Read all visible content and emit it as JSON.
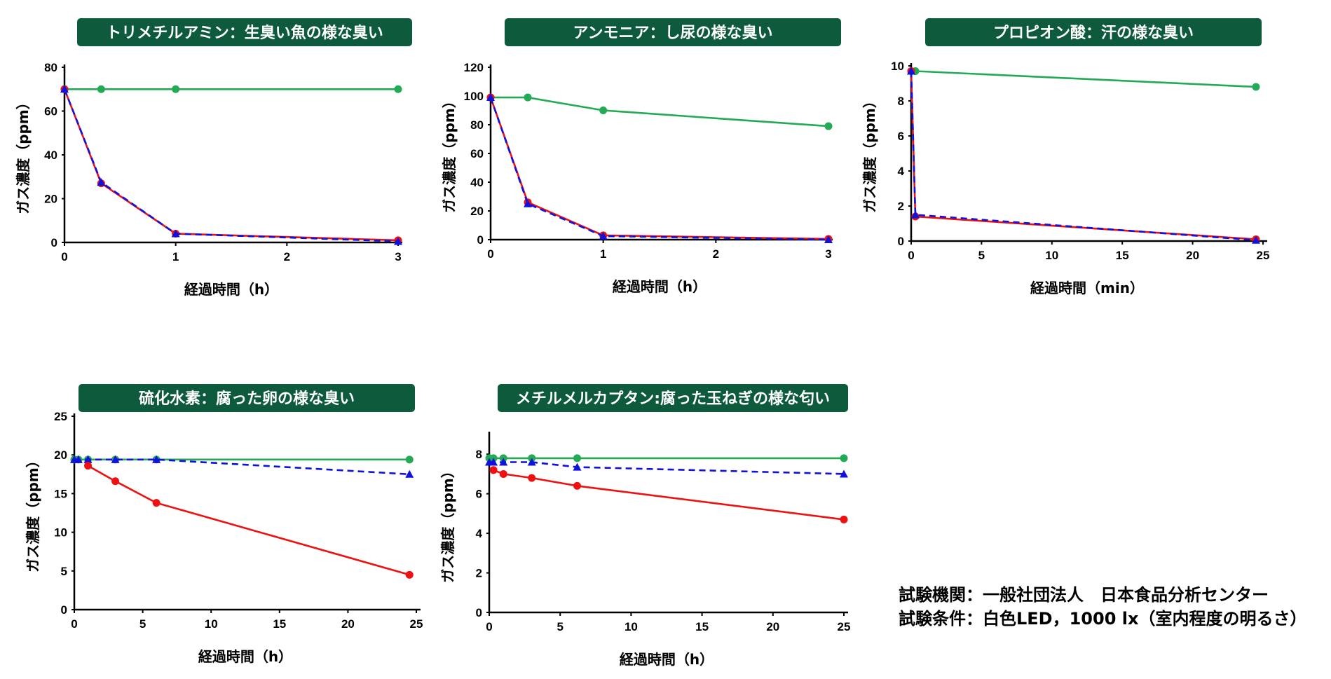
{
  "colors": {
    "title_bg": "#0d5a3c",
    "green": "#22aa55",
    "red": "#ee1111",
    "blue": "#1111dd"
  },
  "notes": {
    "line1": "試験機関：一般社団法人　日本食品分析センター",
    "line2": "試験条件：白色LED，1000 lx（室内程度の明るさ）"
  },
  "chart_data": [
    {
      "type": "line",
      "title": "トリメチルアミン：生臭い魚の様な臭い",
      "xlabel": "経過時間（h）",
      "ylabel": "ガス濃度（ppm）",
      "xlim": [
        0,
        3
      ],
      "ylim": [
        0,
        80
      ],
      "xticks": [
        0,
        1,
        2,
        3
      ],
      "yticks": [
        0,
        20,
        40,
        60,
        80
      ],
      "grid": false,
      "series": [
        {
          "color": "green",
          "marker": "circle",
          "dash": false,
          "points": [
            [
              0,
              70
            ],
            [
              0.33,
              70
            ],
            [
              1,
              70
            ],
            [
              3,
              70
            ]
          ]
        },
        {
          "color": "red",
          "marker": "circle",
          "dash": false,
          "points": [
            [
              0,
              70
            ],
            [
              0.33,
              27
            ],
            [
              1,
              4
            ],
            [
              3,
              1
            ]
          ]
        },
        {
          "color": "blue",
          "marker": "triangle",
          "dash": true,
          "points": [
            [
              0,
              70
            ],
            [
              0.33,
              27.5
            ],
            [
              1,
              4
            ],
            [
              3,
              0.5
            ]
          ]
        }
      ]
    },
    {
      "type": "line",
      "title": "アンモニア：し尿の様な臭い",
      "xlabel": "経過時間（h）",
      "ylabel": "ガス濃度（ppm）",
      "xlim": [
        0,
        3
      ],
      "ylim": [
        0,
        120
      ],
      "xticks": [
        0,
        1,
        2,
        3
      ],
      "yticks": [
        0,
        20,
        40,
        60,
        80,
        100,
        120
      ],
      "grid": false,
      "series": [
        {
          "color": "green",
          "marker": "circle",
          "dash": false,
          "points": [
            [
              0,
              99
            ],
            [
              0.33,
              99
            ],
            [
              1,
              90
            ],
            [
              3,
              79
            ]
          ]
        },
        {
          "color": "red",
          "marker": "circle",
          "dash": false,
          "points": [
            [
              0,
              99
            ],
            [
              0.33,
              26
            ],
            [
              1,
              3
            ],
            [
              3,
              0.5
            ]
          ]
        },
        {
          "color": "blue",
          "marker": "triangle",
          "dash": true,
          "points": [
            [
              0,
              99
            ],
            [
              0.33,
              25
            ],
            [
              1,
              2.5
            ],
            [
              3,
              0
            ]
          ]
        }
      ]
    },
    {
      "type": "line",
      "title": "プロピオン酸：汗の様な臭い",
      "xlabel": "経過時間（min）",
      "ylabel": "ガス濃度（ppm）",
      "xlim": [
        0,
        25
      ],
      "ylim": [
        0,
        10
      ],
      "xticks": [
        0,
        5,
        10,
        15,
        20,
        25
      ],
      "yticks": [
        0,
        2,
        4,
        6,
        8,
        10
      ],
      "grid": false,
      "series": [
        {
          "color": "green",
          "marker": "circle",
          "dash": false,
          "points": [
            [
              0,
              9.7
            ],
            [
              0.3,
              9.7
            ],
            [
              24.5,
              8.8
            ]
          ]
        },
        {
          "color": "red",
          "marker": "circle",
          "dash": false,
          "points": [
            [
              0,
              9.7
            ],
            [
              0.3,
              1.4
            ],
            [
              24.5,
              0.1
            ]
          ]
        },
        {
          "color": "blue",
          "marker": "triangle",
          "dash": true,
          "points": [
            [
              0,
              9.7
            ],
            [
              0.3,
              1.5
            ],
            [
              24.5,
              0.05
            ]
          ]
        }
      ]
    },
    {
      "type": "line",
      "title": "硫化水素：腐った卵の様な臭い",
      "xlabel": "経過時間（h）",
      "ylabel": "ガス濃度（ppm）",
      "xlim": [
        0,
        25
      ],
      "ylim": [
        0,
        25
      ],
      "xticks": [
        0,
        5,
        10,
        15,
        20,
        25
      ],
      "yticks": [
        0,
        5,
        10,
        15,
        20,
        25
      ],
      "grid": false,
      "series": [
        {
          "color": "green",
          "marker": "circle",
          "dash": false,
          "points": [
            [
              0,
              19.4
            ],
            [
              0.3,
              19.4
            ],
            [
              1,
              19.4
            ],
            [
              3,
              19.4
            ],
            [
              6,
              19.4
            ],
            [
              24.5,
              19.4
            ]
          ]
        },
        {
          "color": "blue",
          "marker": "triangle",
          "dash": true,
          "points": [
            [
              0,
              19.4
            ],
            [
              0.3,
              19.4
            ],
            [
              1,
              19.4
            ],
            [
              3,
              19.4
            ],
            [
              6,
              19.4
            ],
            [
              24.5,
              17.5
            ]
          ]
        },
        {
          "color": "red",
          "marker": "circle",
          "dash": false,
          "points": [
            [
              1,
              18.6
            ],
            [
              3,
              16.6
            ],
            [
              6,
              13.8
            ],
            [
              24.5,
              4.5
            ]
          ]
        }
      ]
    },
    {
      "type": "line",
      "title": "メチルメルカプタン:腐った玉ねぎの様な匂い",
      "xlabel": "経過時間（h）",
      "ylabel": "ガス濃度（ppm）",
      "xlim": [
        0,
        25
      ],
      "ylim": [
        0,
        9
      ],
      "xticks": [
        0,
        5,
        10,
        15,
        20,
        25
      ],
      "yticks": [
        0,
        2,
        4,
        6,
        8
      ],
      "grid": false,
      "series": [
        {
          "color": "green",
          "marker": "circle",
          "dash": false,
          "points": [
            [
              0,
              7.8
            ],
            [
              0.3,
              7.8
            ],
            [
              1,
              7.8
            ],
            [
              3,
              7.8
            ],
            [
              6.2,
              7.8
            ],
            [
              25,
              7.8
            ]
          ]
        },
        {
          "color": "blue",
          "marker": "triangle",
          "dash": true,
          "points": [
            [
              0,
              7.6
            ],
            [
              0.3,
              7.6
            ],
            [
              1,
              7.6
            ],
            [
              3,
              7.6
            ],
            [
              6.2,
              7.35
            ],
            [
              25,
              7.0
            ]
          ]
        },
        {
          "color": "red",
          "marker": "circle",
          "dash": false,
          "points": [
            [
              0.3,
              7.2
            ],
            [
              1,
              7.0
            ],
            [
              3,
              6.8
            ],
            [
              6.2,
              6.4
            ],
            [
              25,
              4.7
            ]
          ]
        }
      ]
    }
  ]
}
